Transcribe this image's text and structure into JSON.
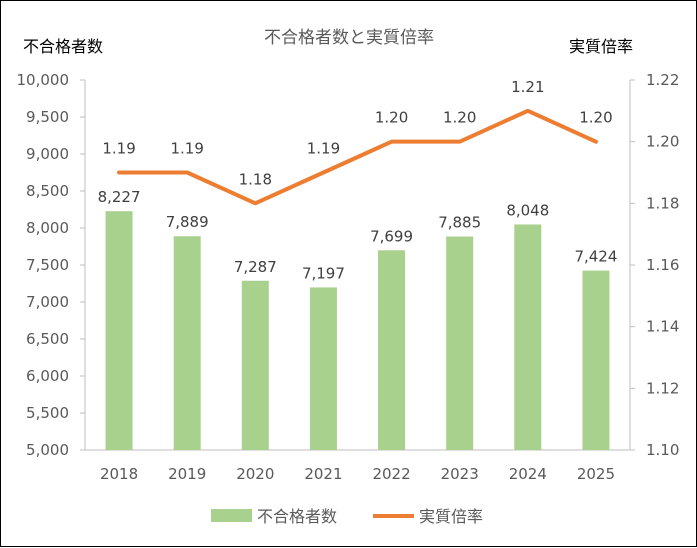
{
  "chart_data": {
    "type": "bar",
    "title": "不合格者数と実質倍率",
    "categories": [
      "2018",
      "2019",
      "2020",
      "2021",
      "2022",
      "2023",
      "2024",
      "2025"
    ],
    "series": [
      {
        "name": "不合格者数",
        "type": "bar",
        "axis": "left",
        "color": "#a9d18e",
        "values": [
          8227,
          7889,
          7287,
          7197,
          7699,
          7885,
          8048,
          7424
        ],
        "data_labels": [
          "8,227",
          "7,889",
          "7,287",
          "7,197",
          "7,699",
          "7,885",
          "8,048",
          "7,424"
        ]
      },
      {
        "name": "実質倍率",
        "type": "line",
        "axis": "right",
        "color": "#ed7d31",
        "values": [
          1.19,
          1.19,
          1.18,
          1.19,
          1.2,
          1.2,
          1.21,
          1.2
        ],
        "data_labels": [
          "1.19",
          "1.19",
          "1.18",
          "1.19",
          "1.20",
          "1.20",
          "1.21",
          "1.20"
        ]
      }
    ],
    "y_left": {
      "label": "不合格者数",
      "ylim": [
        5000,
        10000
      ],
      "ticks": [
        5000,
        5500,
        6000,
        6500,
        7000,
        7500,
        8000,
        8500,
        9000,
        9500,
        10000
      ],
      "tick_labels": [
        "5,000",
        "5,500",
        "6,000",
        "6,500",
        "7,000",
        "7,500",
        "8,000",
        "8,500",
        "9,000",
        "9,500",
        "10,000"
      ]
    },
    "y_right": {
      "label": "実質倍率",
      "ylim": [
        1.1,
        1.22
      ],
      "ticks": [
        1.1,
        1.12,
        1.14,
        1.16,
        1.18,
        1.2,
        1.22
      ],
      "tick_labels": [
        "1.10",
        "1.12",
        "1.14",
        "1.16",
        "1.18",
        "1.20",
        "1.22"
      ]
    },
    "grid": false,
    "legend": "bottom"
  }
}
